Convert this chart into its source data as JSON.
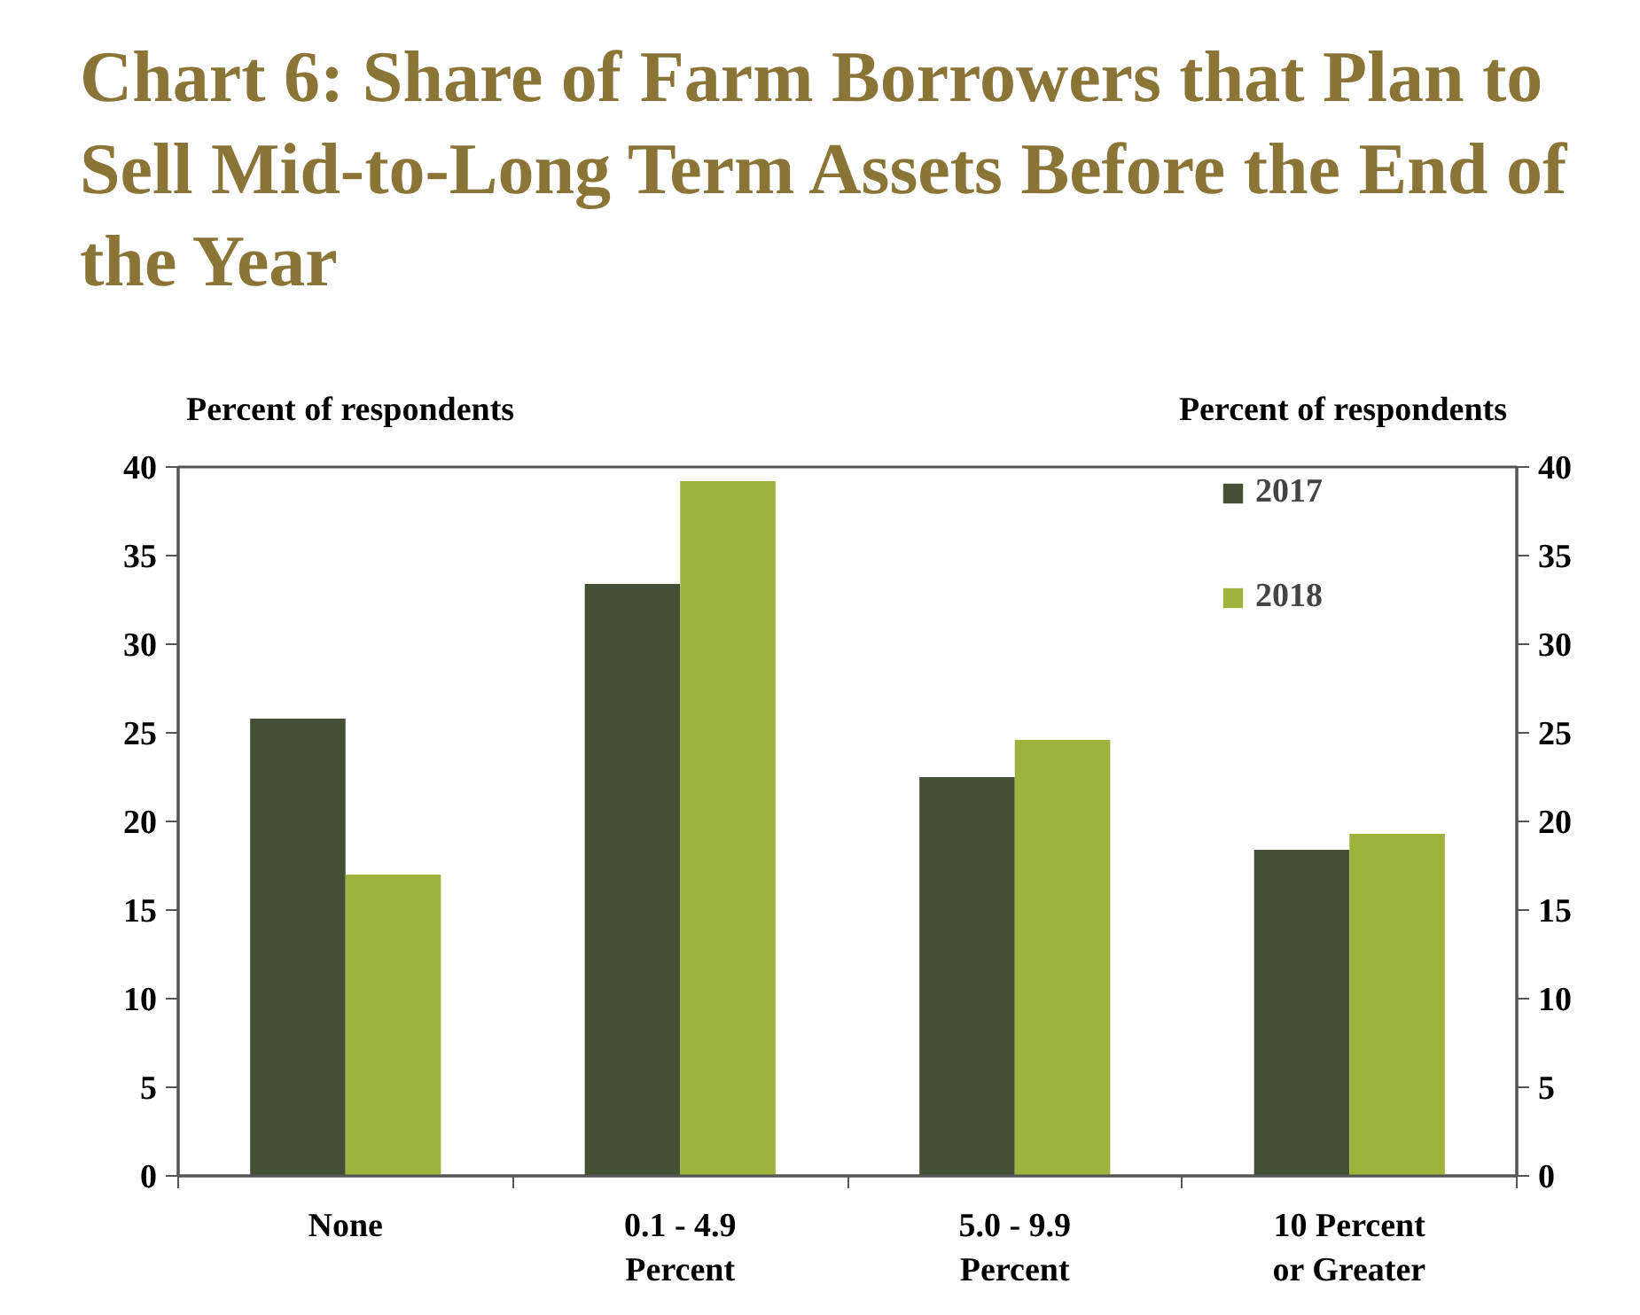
{
  "chart_data": {
    "type": "bar",
    "title": "Chart 6: Share of Farm Borrowers that Plan to Sell Mid-to-Long Term Assets Before the End of the Year",
    "ylabel": "Percent of respondents",
    "y2label": "Percent of respondents",
    "categories": [
      "None",
      "0.1 - 4.9\nPercent",
      "5.0 - 9.9\nPercent",
      "10 Percent\nor Greater"
    ],
    "series": [
      {
        "name": "2017",
        "color": "#445036",
        "values": [
          25.8,
          33.4,
          22.5,
          18.4
        ]
      },
      {
        "name": "2018",
        "color": "#9db33b",
        "values": [
          17.0,
          39.2,
          24.6,
          19.3
        ]
      }
    ],
    "ylim": [
      0,
      40
    ],
    "yticks": [
      0,
      5,
      10,
      15,
      20,
      25,
      30,
      35,
      40
    ],
    "y2lim": [
      0,
      40
    ],
    "y2ticks": [
      0,
      5,
      10,
      15,
      20,
      25,
      30,
      35,
      40
    ],
    "grid": false,
    "legend": "top right"
  }
}
